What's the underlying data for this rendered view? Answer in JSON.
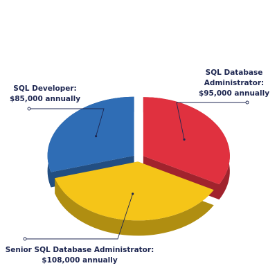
{
  "chart_data": {
    "type": "pie",
    "categories": [
      "SQL Database Administrator:",
      "Senior SQL Database Administrator:",
      "SQL Developer:"
    ],
    "values": [
      95000,
      108000,
      85000
    ],
    "value_labels": [
      "$95,000 annually",
      "$108,000 annually",
      "$85,000 annually"
    ],
    "colors": [
      "#e0313f",
      "#f5c518",
      "#2f6db5"
    ]
  }
}
